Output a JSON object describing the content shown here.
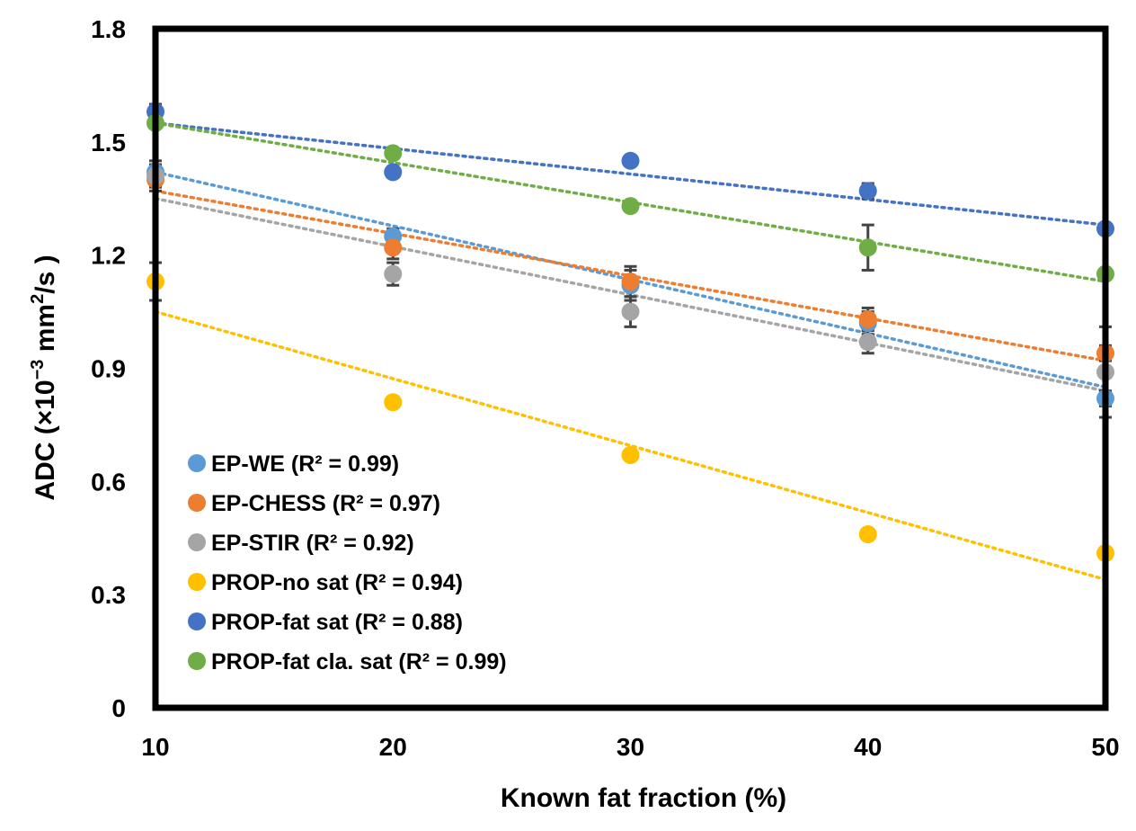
{
  "chart_data": {
    "type": "scatter",
    "xlabel": "Known fat fraction (%)",
    "ylabel_prefix": "ADC (×10",
    "ylabel_exp": "−3",
    "ylabel_unit": " mm",
    "ylabel_unit_exp": "2",
    "ylabel_suffix": "/s )",
    "xlim": [
      10,
      50
    ],
    "ylim": [
      0,
      1.8
    ],
    "x_ticks": [
      "10",
      "20",
      "30",
      "40",
      "50"
    ],
    "y_ticks": [
      "0",
      "0.3",
      "0.6",
      "0.9",
      "1.2",
      "1.5",
      "1.8"
    ],
    "x_tick_values": [
      10,
      20,
      30,
      40,
      50
    ],
    "y_tick_values": [
      0,
      0.3,
      0.6,
      0.9,
      1.2,
      1.5,
      1.8
    ],
    "legend_position": "bottom-left",
    "trendline_style": "dotted linear",
    "series": [
      {
        "name": "EP-WE",
        "r2": "(R² = 0.99)",
        "color": "#5b9bd5",
        "x": [
          10,
          20,
          30,
          40,
          50
        ],
        "y": [
          1.42,
          1.25,
          1.12,
          1.02,
          0.82
        ],
        "err": [
          0.03,
          0.02,
          0.04,
          0.03,
          0.02
        ],
        "fit": [
          1.42,
          0.85
        ]
      },
      {
        "name": "EP-CHESS",
        "r2": "(R² = 0.97)",
        "color": "#ed7d31",
        "x": [
          10,
          20,
          30,
          40,
          50
        ],
        "y": [
          1.4,
          1.22,
          1.13,
          1.03,
          0.94
        ],
        "err": [
          0.03,
          0.03,
          0.04,
          0.03,
          0.02
        ],
        "fit": [
          1.37,
          0.92
        ]
      },
      {
        "name": "EP-STIR",
        "r2": "(R² = 0.92)",
        "color": "#a5a5a5",
        "x": [
          10,
          20,
          30,
          40,
          50
        ],
        "y": [
          1.41,
          1.15,
          1.05,
          0.97,
          0.89
        ],
        "err": [
          0.03,
          0.03,
          0.04,
          0.03,
          0.12
        ],
        "fit": [
          1.35,
          0.84
        ]
      },
      {
        "name": "PROP-no sat",
        "r2": "(R² = 0.94)",
        "color": "#ffc000",
        "x": [
          10,
          20,
          30,
          40,
          50
        ],
        "y": [
          1.13,
          0.81,
          0.67,
          0.46,
          0.41
        ],
        "err": [
          0.05,
          0.01,
          0.01,
          0.01,
          0.01
        ],
        "fit": [
          1.05,
          0.34
        ]
      },
      {
        "name": "PROP-fat sat",
        "r2": "(R² = 0.88)",
        "color": "#4472c4",
        "x": [
          10,
          20,
          30,
          40,
          50
        ],
        "y": [
          1.58,
          1.42,
          1.45,
          1.37,
          1.27
        ],
        "err": [
          0.02,
          0.01,
          0.01,
          0.02,
          0.01
        ],
        "fit": [
          1.55,
          1.28
        ]
      },
      {
        "name": "PROP-fat cla. sat",
        "r2": "(R² = 0.99)",
        "color": "#70ad47",
        "x": [
          10,
          20,
          30,
          40,
          50
        ],
        "y": [
          1.55,
          1.47,
          1.33,
          1.22,
          1.15
        ],
        "err": [
          0.01,
          0.01,
          0.01,
          0.06,
          0.01
        ],
        "fit": [
          1.55,
          1.13
        ]
      }
    ]
  }
}
